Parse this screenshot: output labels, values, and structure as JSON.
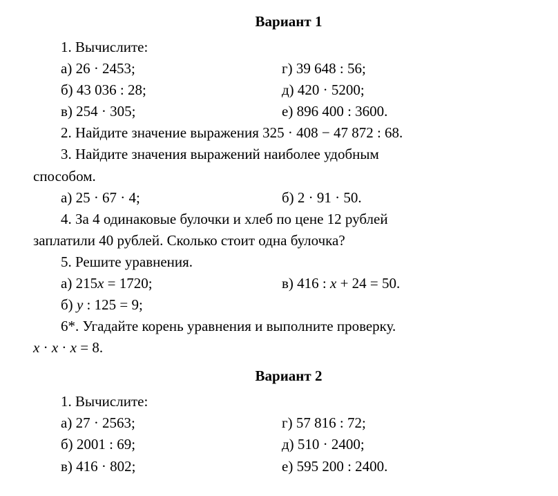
{
  "variant1": {
    "title": "Вариант 1",
    "q1": {
      "prompt": "1. Вычислите:",
      "a": "а) 26 · 2453;",
      "b": "б) 43 036 : 28;",
      "v": "в) 254 · 305;",
      "g": "г) 39 648 : 56;",
      "d": "д) 420 · 5200;",
      "e": "е) 896 400 : 3600."
    },
    "q2": "2. Найдите значение выражения 325 · 408 − 47 872 : 68.",
    "q3": {
      "line1": "3. Найдите значения выражений наиболее удобным",
      "line2": "способом.",
      "a": "а) 25 · 67 · 4;",
      "b": "б) 2 · 91 · 50."
    },
    "q4": {
      "line1": "4. За 4 одинаковые булочки и хлеб по цене 12 рублей",
      "line2": "заплатили 40 рублей. Сколько стоит одна булочка?"
    },
    "q5": {
      "prompt": "5. Решите уравнения.",
      "a_pre": "а) 215",
      "a_var": "x",
      "a_post": " = 1720;",
      "b_pre": "б) ",
      "b_var": "y",
      "b_post": " : 125 = 9;",
      "v_pre": "в) 416 : ",
      "v_var": "x",
      "v_post": " + 24 = 50."
    },
    "q6": {
      "prompt": "6*. Угадайте корень уравнения и выполните проверку.",
      "expr_x": "x",
      "expr_dot": " · ",
      "expr_eq": " = 8."
    }
  },
  "variant2": {
    "title": "Вариант 2",
    "q1": {
      "prompt": "1. Вычислите:",
      "a": "а) 27 · 2563;",
      "b": "б) 2001 : 69;",
      "v": "в) 416 · 802;",
      "g": "г) 57 816 : 72;",
      "d": "д) 510 · 2400;",
      "e": "е) 595 200 : 2400."
    }
  }
}
